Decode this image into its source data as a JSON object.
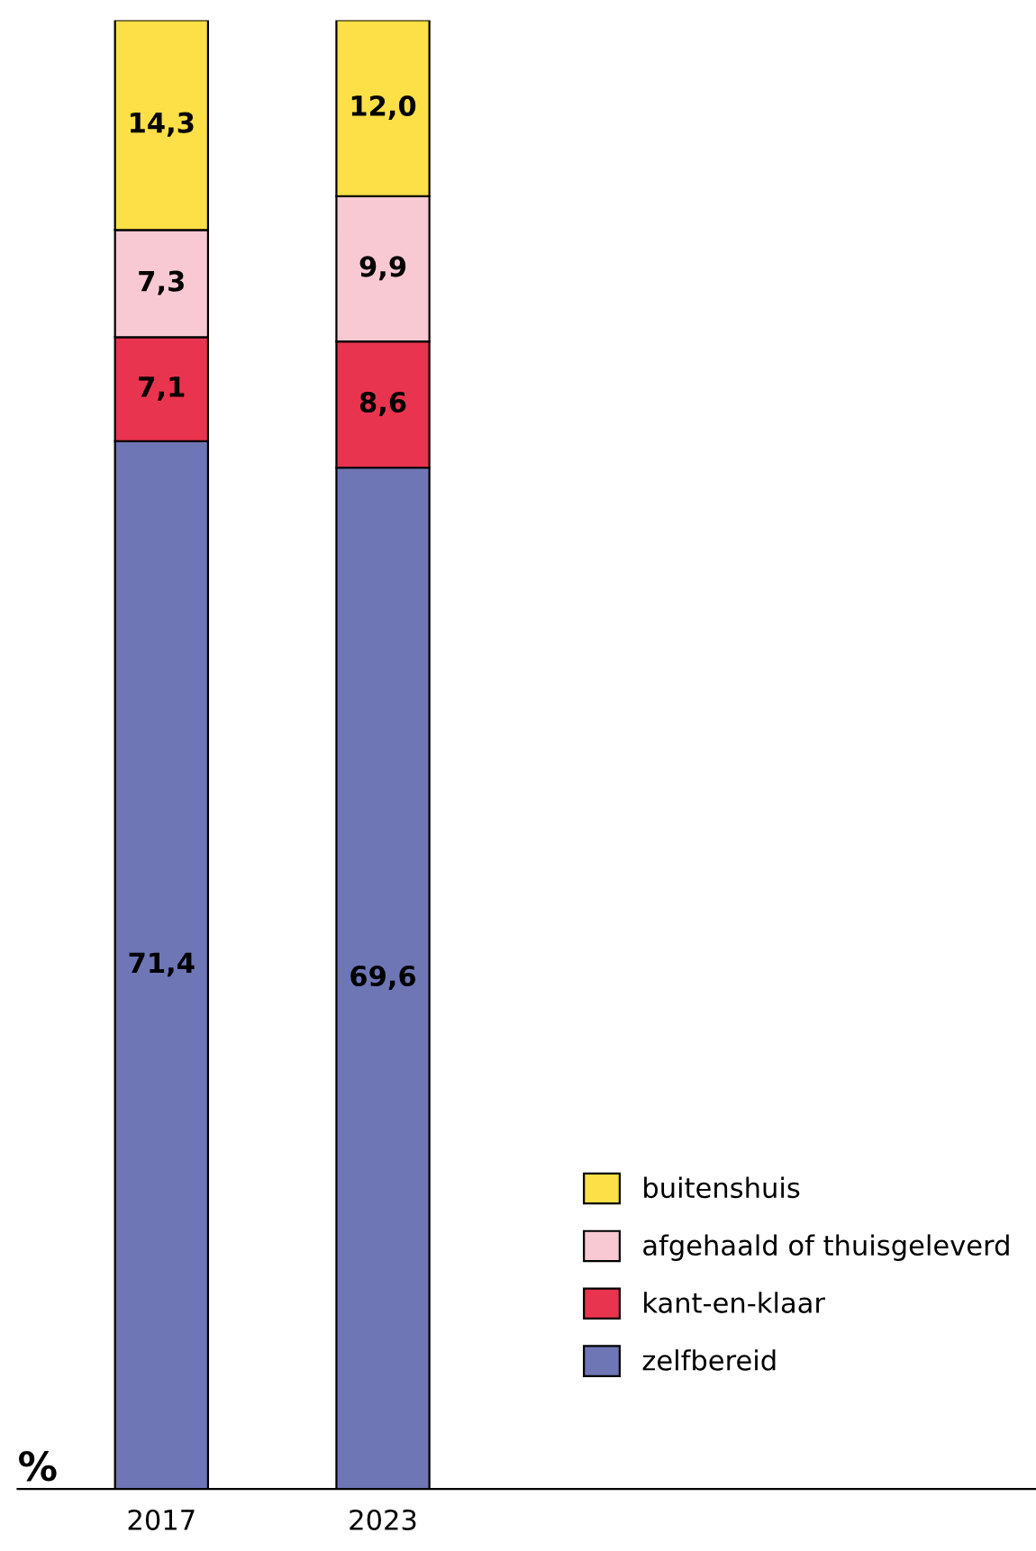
{
  "chart_data": {
    "type": "bar",
    "stacked": true,
    "ylabel": "%",
    "categories": [
      "2017",
      "2023"
    ],
    "tick_labels": "x",
    "legend": "bottom right",
    "grid": false,
    "series": [
      {
        "name": "zelfbereid",
        "color": "#6f76b6",
        "values": [
          71.4,
          69.6
        ],
        "value_labels": [
          "71,4",
          "69,6"
        ]
      },
      {
        "name": "kant-en-klaar",
        "color": "#e8344e",
        "values": [
          7.1,
          8.6
        ],
        "value_labels": [
          "7,1",
          "8,6"
        ]
      },
      {
        "name": "afgehaald of thuisgeleverd",
        "color": "#f8c9d3",
        "values": [
          7.3,
          9.9
        ],
        "value_labels": [
          "7,3",
          "9,9"
        ]
      },
      {
        "name": "buitenshuis",
        "color": "#fde047",
        "values": [
          14.3,
          12.0
        ],
        "value_labels": [
          "14,3",
          "12,0"
        ]
      }
    ]
  }
}
